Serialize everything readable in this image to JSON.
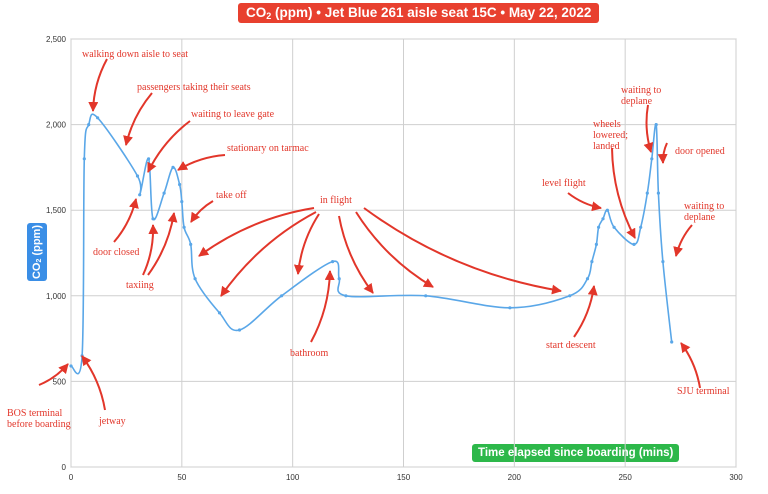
{
  "chart_data": {
    "type": "line",
    "title_prefix": "CO",
    "title_sub": "2",
    "title_rest": " (ppm) • Jet Blue 261 aisle seat 15C • May 22, 2022",
    "ylabel_prefix": "CO",
    "ylabel_sub": "2",
    "ylabel_rest": " (ppm)",
    "xlabel": "Time elapsed since boarding (mins)",
    "xlim": [
      0,
      300
    ],
    "ylim": [
      0,
      2500
    ],
    "x_ticks": [
      0,
      50,
      100,
      150,
      200,
      250,
      300
    ],
    "y_ticks": [
      {
        "value": 0,
        "label": "0"
      },
      {
        "value": 500,
        "label": "500"
      },
      {
        "value": 1000,
        "label": "1,000"
      },
      {
        "value": 1500,
        "label": "1,500"
      },
      {
        "value": 2000,
        "label": "2,000"
      },
      {
        "value": 2500,
        "label": "2,500"
      }
    ],
    "grid": true,
    "series": [
      {
        "color": "#5aa7e8",
        "x": [
          0,
          5,
          6,
          8,
          12,
          30,
          31,
          35,
          37,
          42,
          46,
          49,
          50,
          51,
          54,
          56,
          67,
          76,
          95,
          118,
          121,
          124,
          160,
          198,
          225,
          233,
          235,
          237,
          238,
          240,
          242,
          245,
          254,
          257,
          260,
          262,
          264,
          265,
          267,
          271
        ],
        "y": [
          590,
          650,
          1800,
          2000,
          2040,
          1700,
          1590,
          1800,
          1450,
          1600,
          1750,
          1650,
          1550,
          1400,
          1300,
          1100,
          900,
          800,
          1000,
          1200,
          1100,
          1000,
          1000,
          930,
          1000,
          1100,
          1200,
          1300,
          1400,
          1450,
          1500,
          1400,
          1300,
          1400,
          1600,
          1800,
          2000,
          1600,
          1200,
          730
        ]
      }
    ],
    "annotations": [
      {
        "lines": [
          "walking down aisle to seat"
        ]
      },
      {
        "lines": [
          "passengers taking their seats"
        ]
      },
      {
        "lines": [
          "waiting to leave gate"
        ]
      },
      {
        "lines": [
          "stationary on tarmac"
        ]
      },
      {
        "lines": [
          "take off"
        ]
      },
      {
        "lines": [
          "in flight"
        ]
      },
      {
        "lines": [
          "door closed"
        ]
      },
      {
        "lines": [
          "taxiing"
        ]
      },
      {
        "lines": [
          "bathroom"
        ]
      },
      {
        "lines": [
          "BOS terminal",
          "before boarding"
        ]
      },
      {
        "lines": [
          "jetway"
        ]
      },
      {
        "lines": [
          "level flight"
        ]
      },
      {
        "lines": [
          "wheels",
          "lowered;",
          "landed"
        ]
      },
      {
        "lines": [
          "waiting to",
          "deplane"
        ]
      },
      {
        "lines": [
          "door opened"
        ]
      },
      {
        "lines": [
          "waiting to",
          "deplane"
        ]
      },
      {
        "lines": [
          "start descent"
        ]
      },
      {
        "lines": [
          "SJU terminal"
        ]
      }
    ]
  }
}
